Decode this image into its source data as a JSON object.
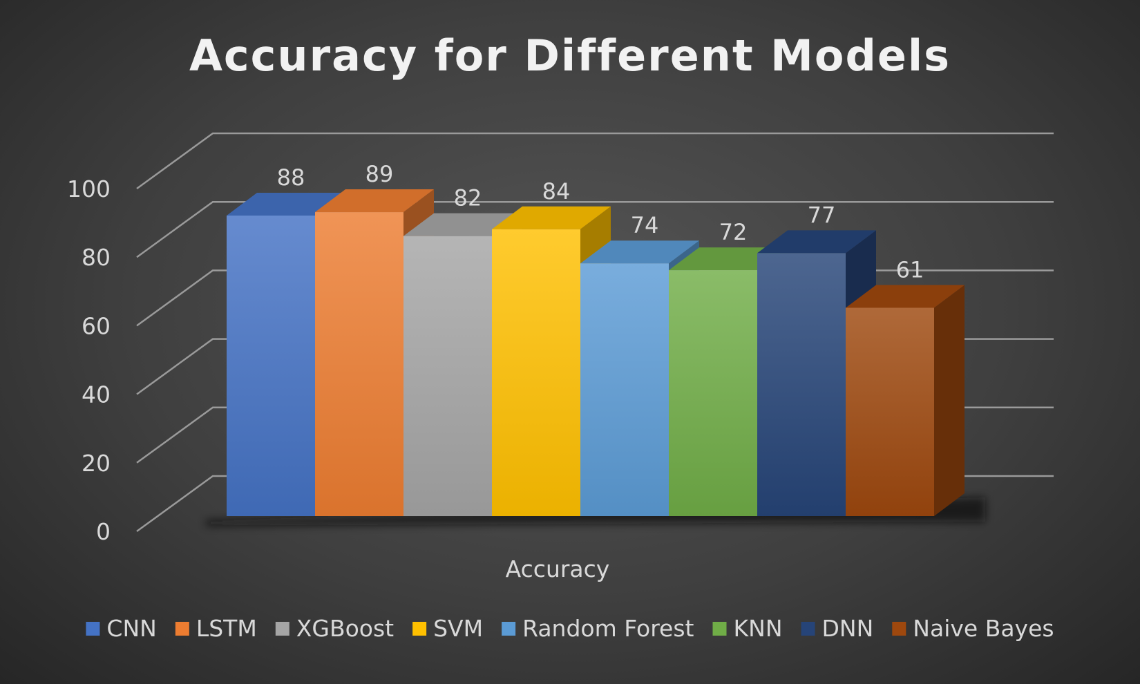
{
  "chart_data": {
    "type": "bar",
    "title": "Accuracy for Different Models",
    "xlabel": "Accuracy",
    "ylabel": "",
    "categories": [
      "Accuracy"
    ],
    "ylim": [
      0,
      100
    ],
    "yticks": [
      "0",
      "20",
      "40",
      "60",
      "80",
      "100"
    ],
    "grid": true,
    "legend_position": "bottom",
    "style": "3d-clustered-column",
    "series": [
      {
        "name": "CNN",
        "values": [
          88
        ],
        "label": "88",
        "color": "#4472c4"
      },
      {
        "name": "LSTM",
        "values": [
          89
        ],
        "label": "89",
        "color": "#ed7d31"
      },
      {
        "name": "XGBoost",
        "values": [
          82
        ],
        "label": "82",
        "color": "#a5a5a5"
      },
      {
        "name": "SVM",
        "values": [
          84
        ],
        "label": "84",
        "color": "#ffc000"
      },
      {
        "name": "Random Forest",
        "values": [
          74
        ],
        "label": "74",
        "color": "#5b9bd5"
      },
      {
        "name": "KNN",
        "values": [
          72
        ],
        "label": "72",
        "color": "#70ad47"
      },
      {
        "name": "DNN",
        "values": [
          77
        ],
        "label": "77",
        "color": "#264478"
      },
      {
        "name": "Naive Bayes",
        "values": [
          61
        ],
        "label": "61",
        "color": "#9e480e"
      }
    ]
  }
}
